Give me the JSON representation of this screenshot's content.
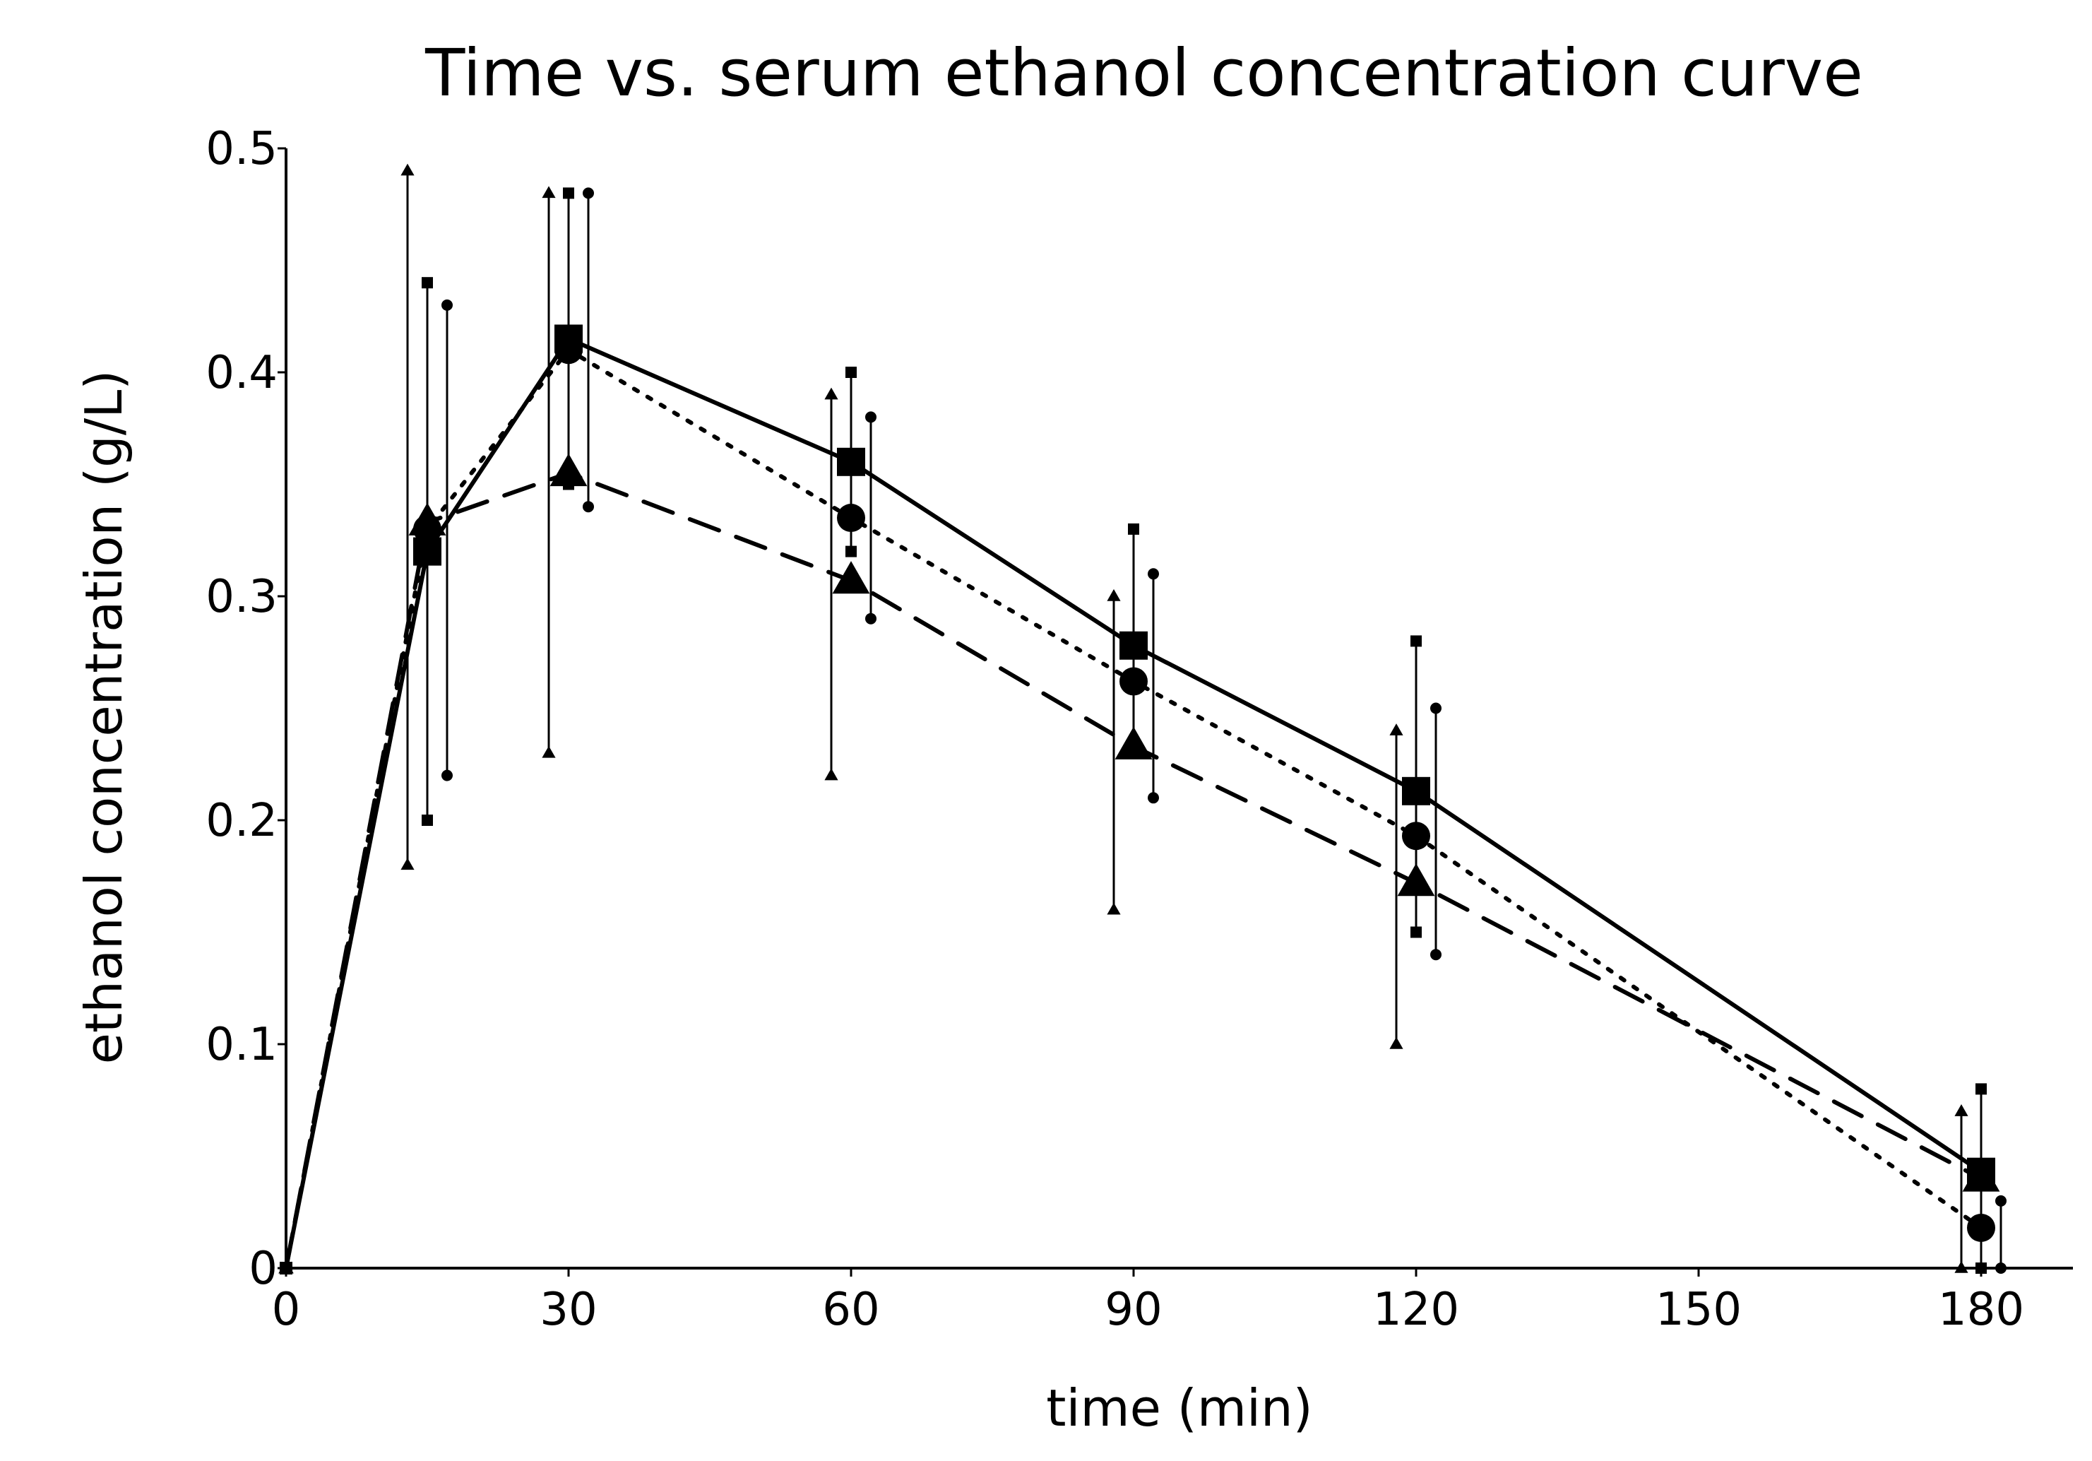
{
  "chart_data": {
    "type": "line",
    "title": "Time vs. serum ethanol concentration curve",
    "xlabel": "time (min)",
    "ylabel": "ethanol concentration (g/L)",
    "xlim": [
      0,
      190
    ],
    "ylim": [
      0,
      0.5
    ],
    "x_ticks": [
      0,
      30,
      60,
      90,
      120,
      150,
      180
    ],
    "x_tick_labels": [
      "0",
      "30",
      "60",
      "90",
      "120",
      "150",
      "180"
    ],
    "y_ticks": [
      0,
      0.1,
      0.2,
      0.3,
      0.4,
      0.5
    ],
    "y_tick_labels": [
      "0",
      "0.1",
      "0.2",
      "0.3",
      "0.4",
      "0.5"
    ],
    "grid": false,
    "legend": "none",
    "series": [
      {
        "name": "square (solid)",
        "marker": "square",
        "line_style": "solid",
        "x": [
          0,
          15,
          30,
          60,
          90,
          120,
          180
        ],
        "values": [
          0,
          0.32,
          0.415,
          0.36,
          0.278,
          0.213,
          0.043
        ],
        "error_high": [
          0,
          0.44,
          0.48,
          0.4,
          0.33,
          0.28,
          0.08
        ],
        "error_low": [
          0,
          0.2,
          0.35,
          0.32,
          0.23,
          0.15,
          0.0
        ]
      },
      {
        "name": "circle (dotted)",
        "marker": "circle",
        "line_style": "dotted",
        "x": [
          0,
          15,
          30,
          60,
          90,
          120,
          180
        ],
        "values": [
          0,
          0.33,
          0.41,
          0.335,
          0.262,
          0.193,
          0.018
        ],
        "error_high": [
          0,
          0.43,
          0.48,
          0.38,
          0.31,
          0.25,
          0.03
        ],
        "error_low": [
          0,
          0.22,
          0.34,
          0.29,
          0.21,
          0.14,
          0.0
        ]
      },
      {
        "name": "triangle (dashed)",
        "marker": "triangle",
        "line_style": "dashed",
        "x": [
          0,
          15,
          30,
          60,
          90,
          120,
          180
        ],
        "values": [
          0,
          0.333,
          0.355,
          0.307,
          0.233,
          0.172,
          0.04
        ],
        "error_high": [
          0,
          0.49,
          0.48,
          0.39,
          0.3,
          0.24,
          0.07
        ],
        "error_low": [
          0,
          0.18,
          0.23,
          0.22,
          0.16,
          0.1,
          0.0
        ]
      }
    ]
  }
}
